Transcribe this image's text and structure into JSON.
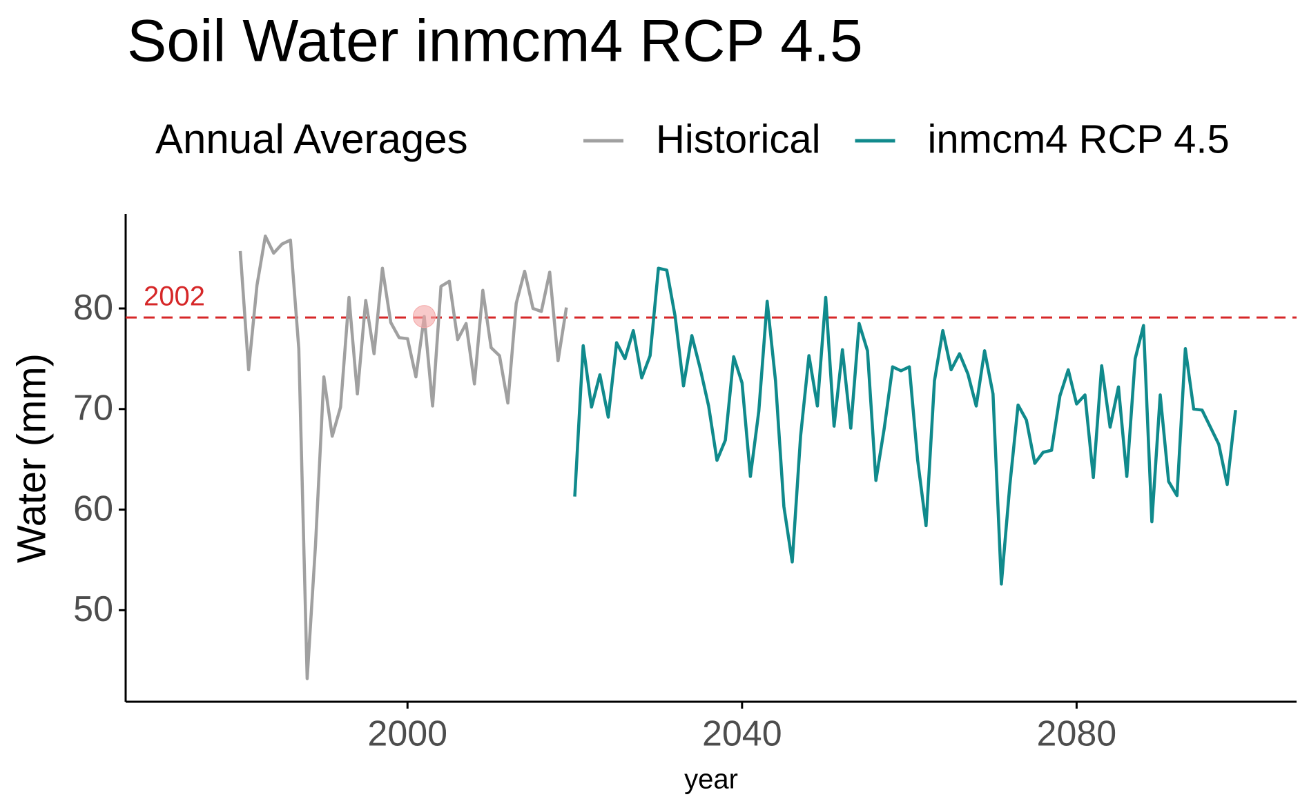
{
  "chart_data": {
    "type": "line",
    "title": "Soil Water inmcm4 RCP 4.5",
    "legend_title": "Annual Averages",
    "x_label": "year",
    "y_label": "Water (mm)",
    "xlim": [
      1966.3,
      2106.3
    ],
    "ylim": [
      40.9,
      89.4
    ],
    "xticks": [
      2000,
      2040,
      2080
    ],
    "yticks": [
      50,
      60,
      70,
      80
    ],
    "grid": false,
    "legend_position": "top",
    "reference_line": {
      "value": 79.1,
      "color": "#d62728",
      "label": "2002"
    },
    "highlight_point": {
      "x": 2002,
      "y": 79.2,
      "color": "#f4a6a6"
    },
    "series": [
      {
        "name": "Historical",
        "color": "#a0a0a0",
        "x": [
          1980,
          1981,
          1982,
          1983,
          1984,
          1985,
          1986,
          1987,
          1988,
          1989,
          1990,
          1991,
          1992,
          1993,
          1994,
          1995,
          1996,
          1997,
          1998,
          1999,
          2000,
          2001,
          2002,
          2003,
          2004,
          2005,
          2006,
          2007,
          2008,
          2009,
          2010,
          2011,
          2012,
          2013,
          2014,
          2015,
          2016,
          2017,
          2018,
          2019
        ],
        "values": [
          85.7,
          73.9,
          82.3,
          87.2,
          85.5,
          86.4,
          86.8,
          76,
          43.2,
          56.5,
          73.2,
          67.3,
          70.2,
          81.1,
          71.5,
          80.8,
          75.5,
          84.0,
          78.6,
          77.1,
          77.0,
          73.2,
          79.2,
          70.3,
          82.2,
          82.7,
          76.9,
          78.5,
          72.5,
          81.8,
          76.1,
          75.3,
          70.6,
          80.5,
          83.7,
          80.0,
          79.7,
          83.6,
          74.8,
          80.1
        ]
      },
      {
        "name": "inmcm4 RCP 4.5",
        "color": "#108a8c",
        "x": [
          2020,
          2021,
          2022,
          2023,
          2024,
          2025,
          2026,
          2027,
          2028,
          2029,
          2030,
          2031,
          2032,
          2033,
          2034,
          2035,
          2036,
          2037,
          2038,
          2039,
          2040,
          2041,
          2042,
          2043,
          2044,
          2045,
          2046,
          2047,
          2048,
          2049,
          2050,
          2051,
          2052,
          2053,
          2054,
          2055,
          2056,
          2057,
          2058,
          2059,
          2060,
          2061,
          2062,
          2063,
          2064,
          2065,
          2066,
          2067,
          2068,
          2069,
          2070,
          2071,
          2072,
          2073,
          2074,
          2075,
          2076,
          2077,
          2078,
          2079,
          2080,
          2081,
          2082,
          2083,
          2084,
          2085,
          2086,
          2087,
          2088,
          2089,
          2090,
          2091,
          2092,
          2093,
          2094,
          2095,
          2096,
          2097,
          2098,
          2099
        ],
        "values": [
          61.3,
          76.3,
          70.2,
          73.4,
          69.2,
          76.6,
          75.0,
          77.8,
          73.1,
          75.3,
          84.0,
          83.8,
          79.2,
          72.3,
          77.3,
          74.0,
          70.3,
          64.9,
          66.9,
          75.2,
          72.6,
          63.3,
          69.8,
          80.7,
          72.8,
          60.3,
          54.8,
          67.3,
          75.3,
          70.3,
          81.1,
          68.3,
          75.9,
          68.1,
          78.5,
          75.8,
          62.9,
          68.1,
          74.2,
          73.8,
          74.2,
          64.9,
          58.4,
          72.8,
          77.8,
          73.9,
          75.5,
          73.5,
          70.3,
          75.8,
          71.5,
          52.6,
          62.3,
          70.4,
          68.9,
          64.6,
          65.7,
          65.9,
          71.3,
          73.9,
          70.5,
          71.4,
          63.2,
          74.3,
          68.2,
          72.2,
          63.3,
          75.0,
          78.3,
          58.8,
          71.4,
          62.8,
          61.4,
          76.0,
          70.0,
          69.9,
          68.2,
          66.5,
          62.5,
          69.9
        ]
      }
    ]
  }
}
